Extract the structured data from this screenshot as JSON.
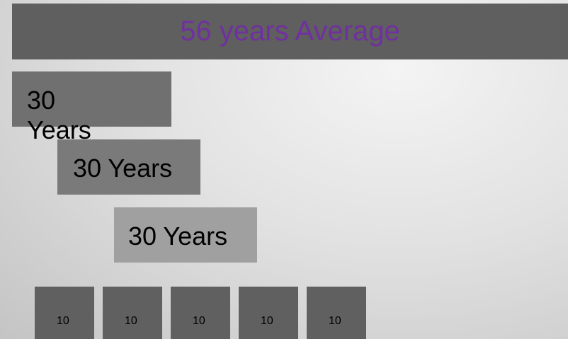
{
  "header": {
    "title": "56 years Average"
  },
  "blocks": [
    {
      "label": "30 Years"
    },
    {
      "label": "30 Years"
    },
    {
      "label": "30 Years"
    }
  ],
  "units": [
    {
      "label": 10
    },
    {
      "label": 10
    },
    {
      "label": 10
    },
    {
      "label": 10
    },
    {
      "label": 10
    }
  ]
}
